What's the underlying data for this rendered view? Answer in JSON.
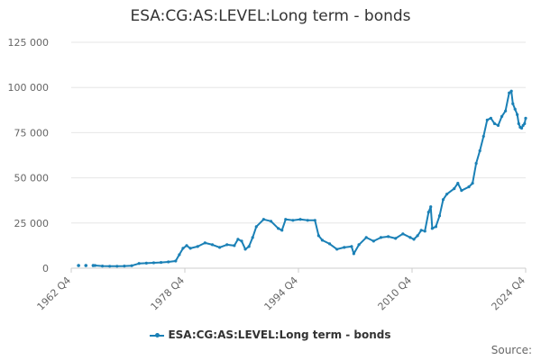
{
  "chart_data": {
    "type": "line",
    "title": "ESA:CG:AS:LEVEL:Long term - bonds",
    "xlabel": "",
    "ylabel": "",
    "ylim": [
      0,
      125000
    ],
    "yticks": [
      "0",
      "25 000",
      "50 000",
      "75 000",
      "100 000",
      "125 000"
    ],
    "xticks": [
      "1962 Q4",
      "1978 Q4",
      "1994 Q4",
      "2010 Q4",
      "2024 Q4"
    ],
    "xlim": [
      1962.75,
      2024.75
    ],
    "grid": true,
    "legend_position": "bottom",
    "series": [
      {
        "name": "ESA:CG:AS:LEVEL:Long term - bonds",
        "color": "#1a80b6",
        "sparse_points": [
          [
            1963.75,
            1500
          ],
          [
            1964.75,
            1500
          ],
          [
            1965.75,
            1500
          ]
        ],
        "points": [
          [
            1966.0,
            1500
          ],
          [
            1967.0,
            1200
          ],
          [
            1968.0,
            1100
          ],
          [
            1969.0,
            1100
          ],
          [
            1970.0,
            1200
          ],
          [
            1971.0,
            1400
          ],
          [
            1972.0,
            2600
          ],
          [
            1973.0,
            2800
          ],
          [
            1974.0,
            3000
          ],
          [
            1975.0,
            3200
          ],
          [
            1976.0,
            3500
          ],
          [
            1977.0,
            4000
          ],
          [
            1977.5,
            7500
          ],
          [
            1978.0,
            11000
          ],
          [
            1978.5,
            12500
          ],
          [
            1979.0,
            11000
          ],
          [
            1980.0,
            12000
          ],
          [
            1981.0,
            14000
          ],
          [
            1982.0,
            13000
          ],
          [
            1983.0,
            11500
          ],
          [
            1984.0,
            13000
          ],
          [
            1985.0,
            12500
          ],
          [
            1985.5,
            16000
          ],
          [
            1986.0,
            15000
          ],
          [
            1986.5,
            10500
          ],
          [
            1987.0,
            12000
          ],
          [
            1987.5,
            17000
          ],
          [
            1988.0,
            23000
          ],
          [
            1989.0,
            27000
          ],
          [
            1990.0,
            26000
          ],
          [
            1991.0,
            22000
          ],
          [
            1991.5,
            21000
          ],
          [
            1992.0,
            27000
          ],
          [
            1993.0,
            26500
          ],
          [
            1994.0,
            27000
          ],
          [
            1995.0,
            26500
          ],
          [
            1996.0,
            26500
          ],
          [
            1996.5,
            18000
          ],
          [
            1997.0,
            15500
          ],
          [
            1998.0,
            13500
          ],
          [
            1999.0,
            10500
          ],
          [
            2000.0,
            11500
          ],
          [
            2001.0,
            12000
          ],
          [
            2001.3,
            8000
          ],
          [
            2002.0,
            13000
          ],
          [
            2003.0,
            17000
          ],
          [
            2004.0,
            15000
          ],
          [
            2005.0,
            17000
          ],
          [
            2006.0,
            17500
          ],
          [
            2007.0,
            16500
          ],
          [
            2008.0,
            19000
          ],
          [
            2009.0,
            17000
          ],
          [
            2009.5,
            16000
          ],
          [
            2010.0,
            18000
          ],
          [
            2010.5,
            21000
          ],
          [
            2011.0,
            20500
          ],
          [
            2011.5,
            31000
          ],
          [
            2011.8,
            34000
          ],
          [
            2012.0,
            22000
          ],
          [
            2012.5,
            23000
          ],
          [
            2013.0,
            29000
          ],
          [
            2013.5,
            38000
          ],
          [
            2014.0,
            41000
          ],
          [
            2015.0,
            44000
          ],
          [
            2015.5,
            47000
          ],
          [
            2016.0,
            43000
          ],
          [
            2017.0,
            45000
          ],
          [
            2017.5,
            47000
          ],
          [
            2018.0,
            58000
          ],
          [
            2018.5,
            65000
          ],
          [
            2019.0,
            73000
          ],
          [
            2019.5,
            82000
          ],
          [
            2020.0,
            83000
          ],
          [
            2020.5,
            80000
          ],
          [
            2021.0,
            79000
          ],
          [
            2021.5,
            84000
          ],
          [
            2022.0,
            87000
          ],
          [
            2022.5,
            97000
          ],
          [
            2022.8,
            98000
          ],
          [
            2023.0,
            91000
          ],
          [
            2023.3,
            88000
          ],
          [
            2023.6,
            85000
          ],
          [
            2023.8,
            80000
          ],
          [
            2024.0,
            78000
          ],
          [
            2024.2,
            77500
          ],
          [
            2024.4,
            79000
          ],
          [
            2024.6,
            80000
          ],
          [
            2024.75,
            83000
          ]
        ]
      }
    ]
  },
  "legend": {
    "label": "ESA:CG:AS:LEVEL:Long term - bonds"
  },
  "source": {
    "label": "Source:"
  }
}
